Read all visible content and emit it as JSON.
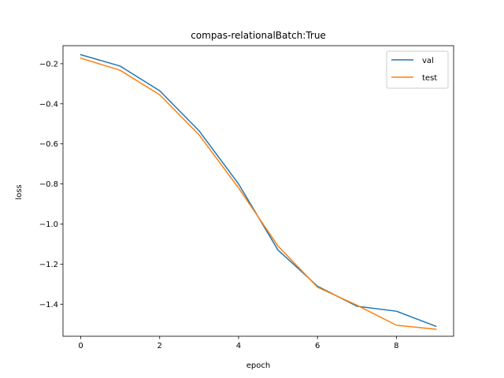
{
  "chart_data": {
    "type": "line",
    "title": "compas-relationalBatch:True",
    "xlabel": "epoch",
    "ylabel": "loss",
    "x": [
      0,
      1,
      2,
      3,
      4,
      5,
      6,
      7,
      8,
      9
    ],
    "xlim": [
      -0.45,
      9.45
    ],
    "ylim": [
      -1.56,
      -0.11
    ],
    "xticks": [
      0,
      2,
      4,
      6,
      8
    ],
    "xtick_labels": [
      "0",
      "2",
      "4",
      "6",
      "8"
    ],
    "yticks": [
      -0.2,
      -0.4,
      -0.6,
      -0.8,
      -1.0,
      -1.2,
      -1.4
    ],
    "ytick_labels": [
      "−0.2",
      "−0.4",
      "−0.6",
      "−0.8",
      "−1.0",
      "−1.2",
      "−1.4"
    ],
    "grid": false,
    "legend_position": "top-right",
    "series": [
      {
        "name": "val",
        "color": "#1f77b4",
        "values": [
          -0.155,
          -0.212,
          -0.335,
          -0.535,
          -0.8,
          -1.13,
          -1.31,
          -1.41,
          -1.435,
          -1.51
        ]
      },
      {
        "name": "test",
        "color": "#ff7f0e",
        "values": [
          -0.172,
          -0.233,
          -0.355,
          -0.555,
          -0.82,
          -1.11,
          -1.315,
          -1.405,
          -1.505,
          -1.525
        ]
      }
    ]
  }
}
